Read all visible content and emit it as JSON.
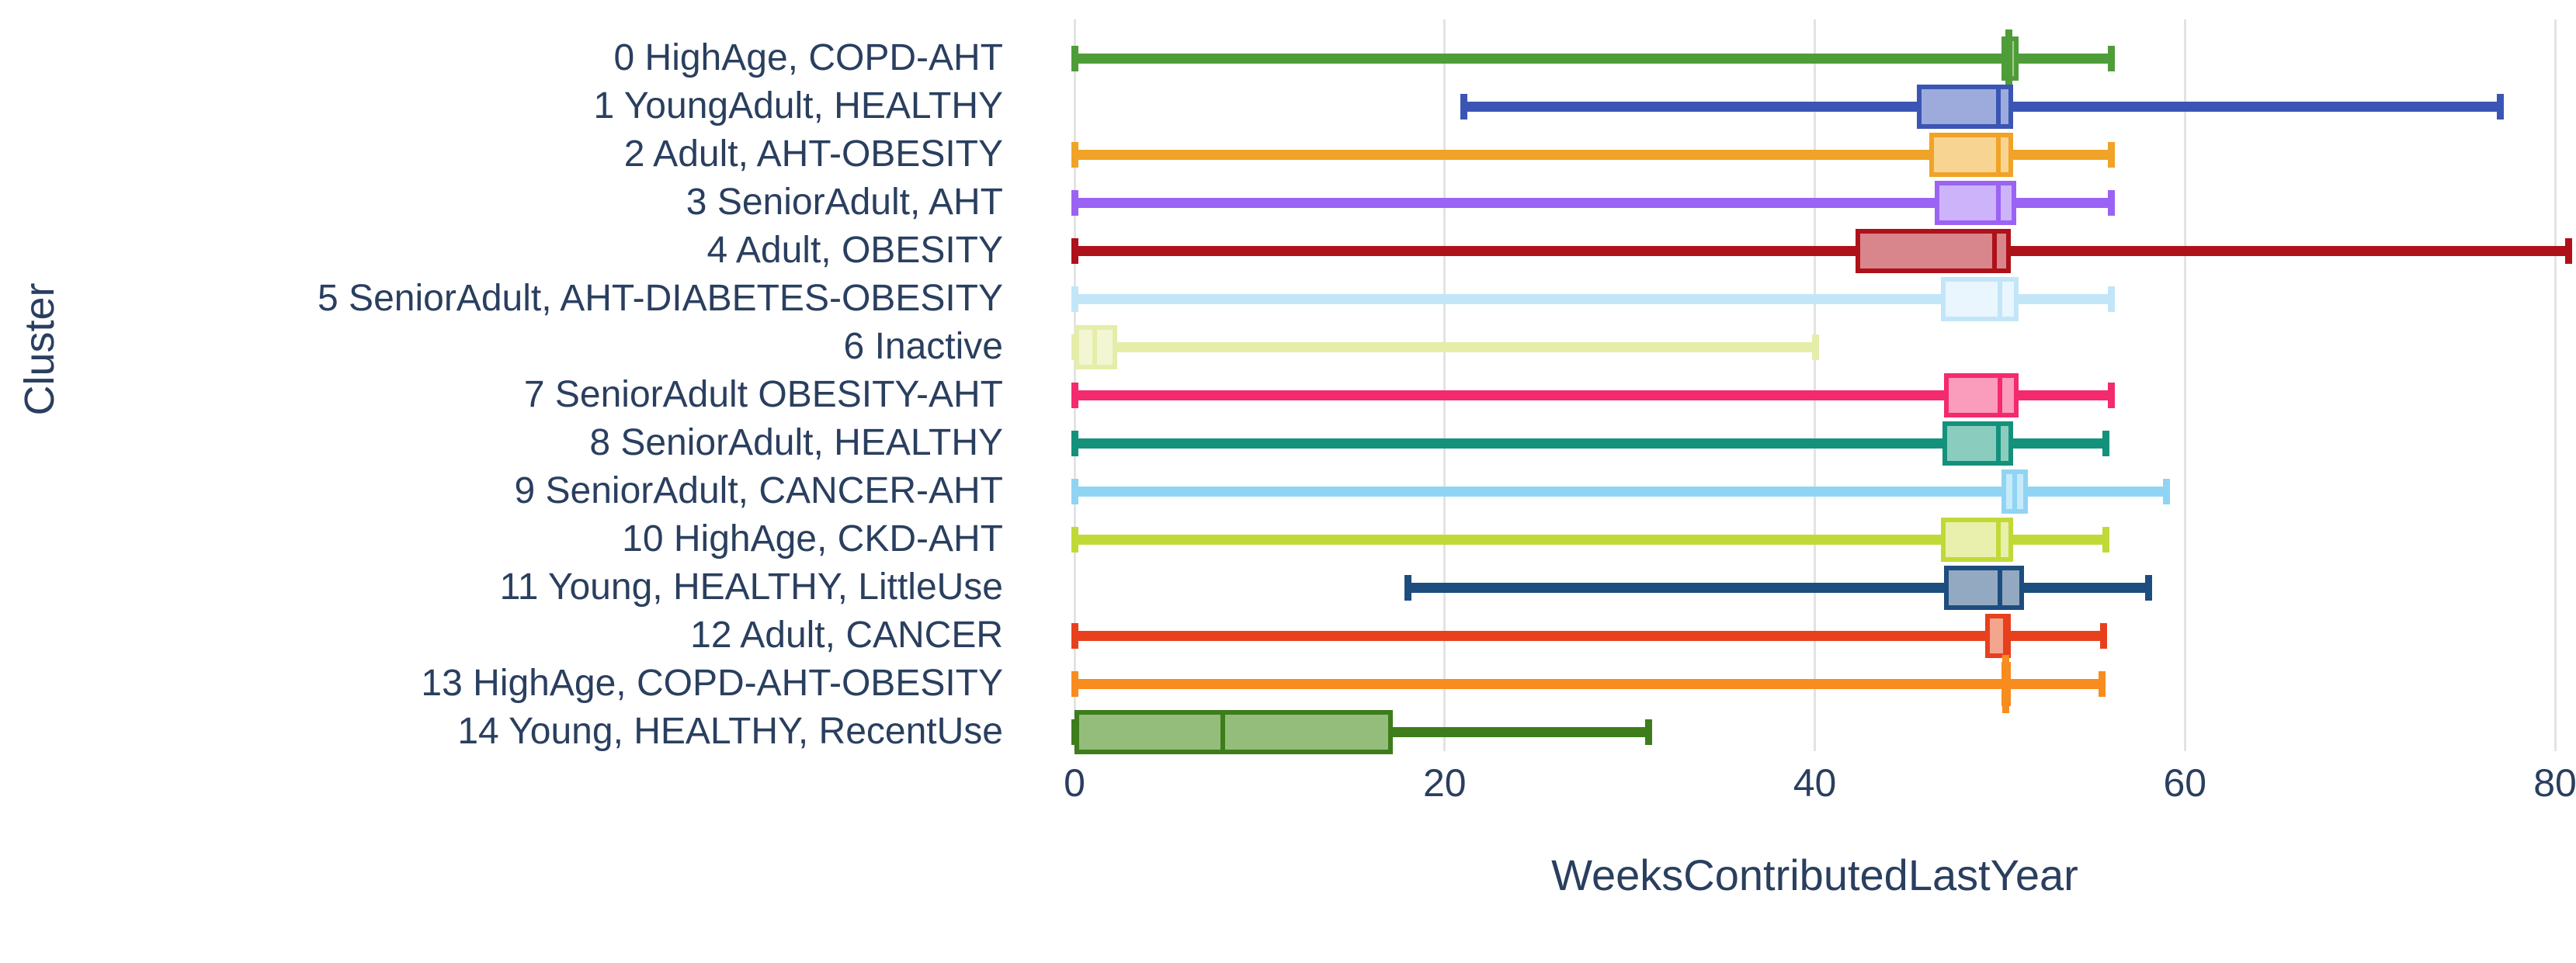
{
  "chart_data": {
    "type": "box",
    "orientation": "horizontal",
    "title": "",
    "xlabel": "WeeksContributedLastYear",
    "ylabel": "Cluster",
    "xlim": [
      0,
      81.5
    ],
    "grid": true,
    "legend": "none",
    "x_ticks": [
      {
        "value": 0,
        "label": "0"
      },
      {
        "value": 20,
        "label": "20"
      },
      {
        "value": 40,
        "label": "40"
      },
      {
        "value": 60,
        "label": "60"
      },
      {
        "value": 80,
        "label": "80"
      }
    ],
    "categories": [
      "0 HighAge, COPD-AHT",
      "1 YoungAdult, HEALTHY",
      "2 Adult, AHT-OBESITY",
      "3 SeniorAdult, AHT",
      "4 Adult, OBESITY",
      "5 SeniorAdult, AHT-DIABETES-OBESITY",
      "6 Inactive",
      "7 SeniorAdult OBESITY-AHT",
      "8 SeniorAdult, HEALTHY",
      "9 SeniorAdult, CANCER-AHT",
      "10 HighAge, CKD-AHT",
      "11 Young, HEALTHY, LittleUse",
      "12 Adult, CANCER",
      "13 HighAge, COPD-AHT-OBESITY",
      "14 Young, HEALTHY, RecentUse"
    ],
    "series": [
      {
        "label": "0 HighAge, COPD-AHT",
        "min": 0,
        "q1": 50.1,
        "median": 50.5,
        "q3": 51.0,
        "max": 56.0,
        "line_color": "#4f9d38",
        "fill_color": "#a7cb97",
        "median_tick": true
      },
      {
        "label": "1 YoungAdult, HEALTHY",
        "min": 21,
        "q1": 45.5,
        "median": 49.9,
        "q3": 50.7,
        "max": 77.0,
        "line_color": "#3a55b4",
        "fill_color": "#9cabdc",
        "median_tick": false
      },
      {
        "label": "2 Adult, AHT-OBESITY",
        "min": 0,
        "q1": 46.2,
        "median": 49.9,
        "q3": 50.7,
        "max": 56.0,
        "line_color": "#f0a327",
        "fill_color": "#f8d493",
        "median_tick": false
      },
      {
        "label": "3 SeniorAdult, AHT",
        "min": 0,
        "q1": 46.5,
        "median": 49.9,
        "q3": 50.9,
        "max": 56.0,
        "line_color": "#9b63f4",
        "fill_color": "#cdb3f9",
        "median_tick": false
      },
      {
        "label": "4 Adult, OBESITY",
        "min": 0,
        "q1": 42.2,
        "median": 49.7,
        "q3": 50.6,
        "max": 80.7,
        "line_color": "#ae1119",
        "fill_color": "#d9858c",
        "median_tick": false
      },
      {
        "label": "5 SeniorAdult, AHT-DIABETES-OBESITY",
        "min": 0,
        "q1": 46.8,
        "median": 50.0,
        "q3": 51.0,
        "max": 56.0,
        "line_color": "#c2e6f8",
        "fill_color": "#e9f6fd",
        "median_tick": false
      },
      {
        "label": "6 Inactive",
        "min": 0,
        "q1": 0.0,
        "median": 1.1,
        "q3": 2.3,
        "max": 40.0,
        "line_color": "#e6eda9",
        "fill_color": "#f3f6d3",
        "median_tick": false
      },
      {
        "label": "7 SeniorAdult OBESITY-AHT",
        "min": 0,
        "q1": 47.0,
        "median": 50.0,
        "q3": 51.0,
        "max": 56.0,
        "line_color": "#f42a6e",
        "fill_color": "#fa9cbc",
        "median_tick": false
      },
      {
        "label": "8 SeniorAdult, HEALTHY",
        "min": 0,
        "q1": 46.9,
        "median": 49.9,
        "q3": 50.7,
        "max": 55.7,
        "line_color": "#13917b",
        "fill_color": "#8acdbe",
        "median_tick": false
      },
      {
        "label": "9 SeniorAdult, CANCER-AHT",
        "min": 0,
        "q1": 50.1,
        "median": 50.8,
        "q3": 51.5,
        "max": 59.0,
        "line_color": "#90d4f4",
        "fill_color": "#c8ebfb",
        "median_tick": false
      },
      {
        "label": "10 HighAge, CKD-AHT",
        "min": 0,
        "q1": 46.8,
        "median": 49.9,
        "q3": 50.7,
        "max": 55.7,
        "line_color": "#c1d937",
        "fill_color": "#e9f0ad",
        "median_tick": false
      },
      {
        "label": "11 Young, HEALTHY, LittleUse",
        "min": 18,
        "q1": 47.0,
        "median": 50.0,
        "q3": 51.3,
        "max": 58.0,
        "line_color": "#1d4d7e",
        "fill_color": "#92a9c1",
        "median_tick": false
      },
      {
        "label": "12 Adult, CANCER",
        "min": 0,
        "q1": 49.2,
        "median": 50.3,
        "q3": 50.6,
        "max": 55.6,
        "line_color": "#e8401d",
        "fill_color": "#f4a58e",
        "median_tick": false
      },
      {
        "label": "13 HighAge, COPD-AHT-OBESITY",
        "min": 0,
        "q1": 50.1,
        "median": 50.3,
        "q3": 50.6,
        "max": 55.5,
        "line_color": "#f88c1f",
        "fill_color": "#fbc991",
        "median_tick": true
      },
      {
        "label": "14 Young, HEALTHY, RecentUse",
        "min": 0,
        "q1": 0.0,
        "median": 8.0,
        "q3": 17.2,
        "max": 31.0,
        "line_color": "#3d7d1b",
        "fill_color": "#94bd7c",
        "median_tick": false
      }
    ]
  },
  "colors": {
    "text": "#2a3f5f",
    "grid": "#e3e3e3",
    "background": "#ffffff"
  }
}
